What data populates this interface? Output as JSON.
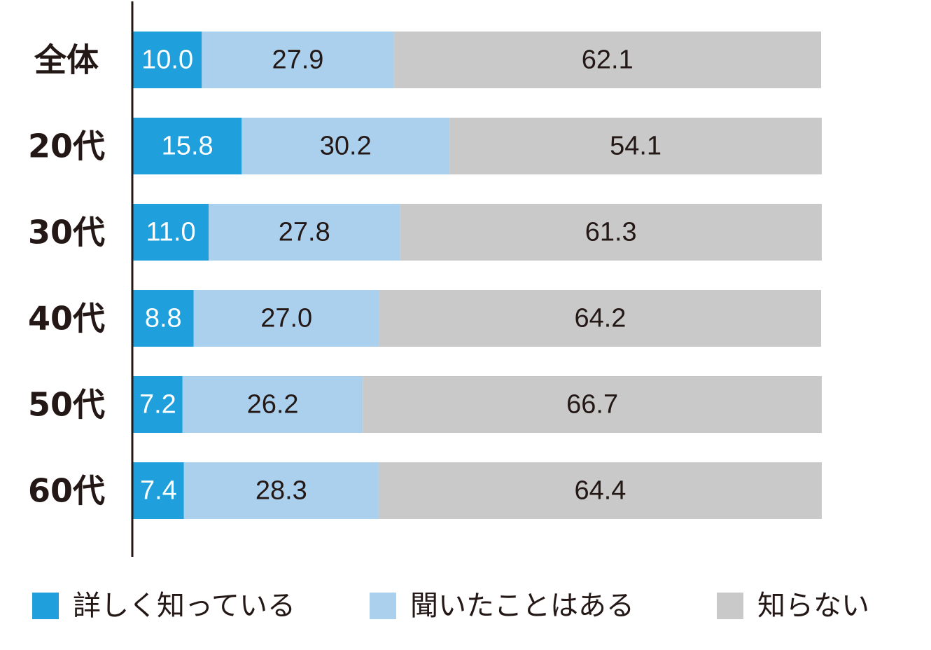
{
  "chart_data": {
    "type": "bar",
    "orientation": "horizontal",
    "stacked": true,
    "categories": [
      "全体",
      "20代",
      "30代",
      "40代",
      "50代",
      "60代"
    ],
    "series": [
      {
        "name": "詳しく知っている",
        "color": "#1f9fdc",
        "label_color": "#ffffff",
        "values": [
          10.0,
          15.8,
          11.0,
          8.8,
          7.2,
          7.4
        ]
      },
      {
        "name": "聞いたことはある",
        "color": "#abd0ee",
        "label_color": "#231815",
        "values": [
          27.9,
          30.2,
          27.8,
          27.0,
          26.2,
          28.3
        ]
      },
      {
        "name": "知らない",
        "color": "#c9c9c9",
        "label_color": "#231815",
        "values": [
          62.1,
          54.1,
          61.3,
          64.2,
          66.7,
          64.4
        ]
      }
    ],
    "xlim": [
      0,
      100
    ],
    "grid": false,
    "legend_position": "bottom"
  }
}
